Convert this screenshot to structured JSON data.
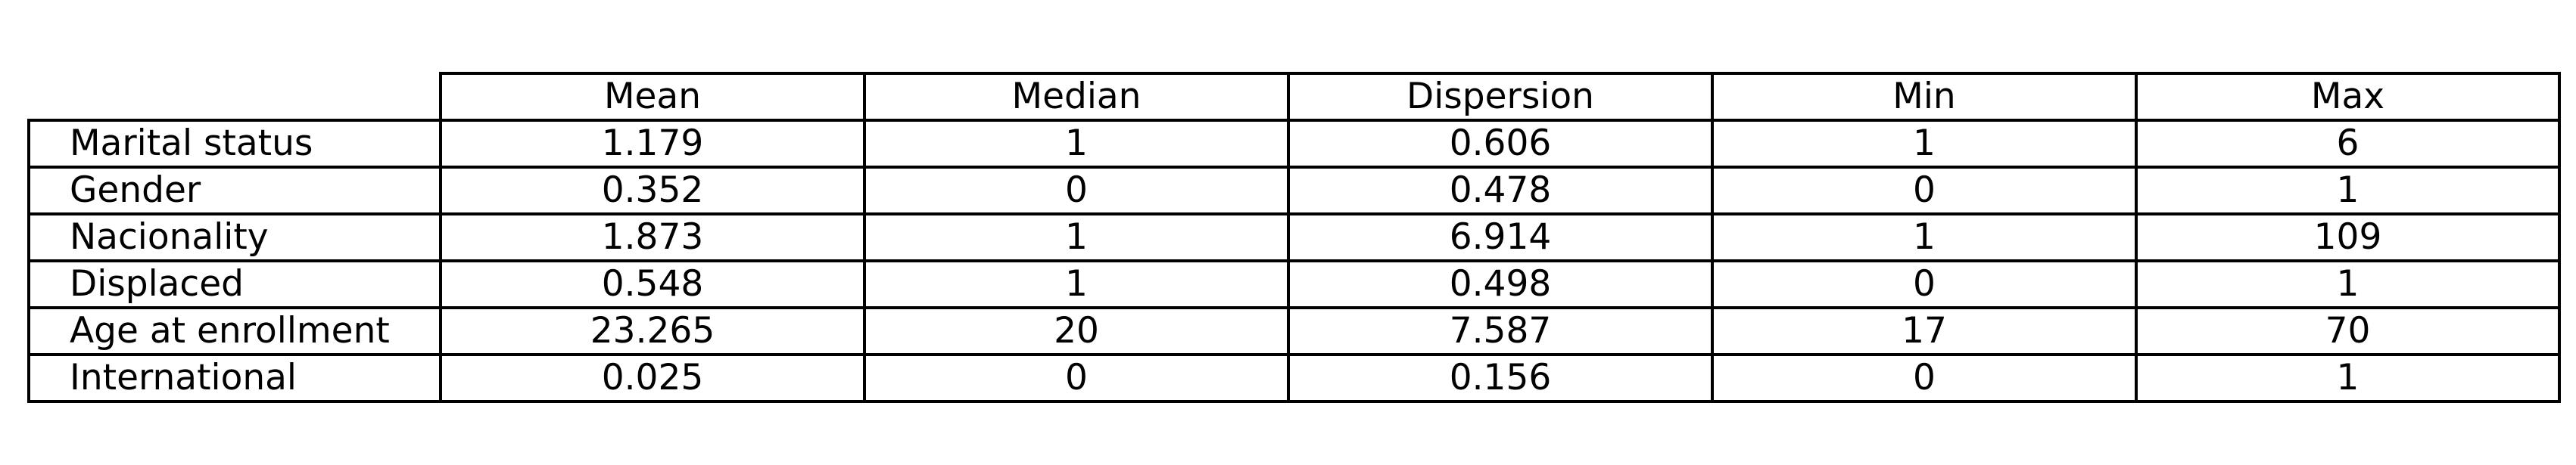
{
  "chart_data": {
    "type": "table",
    "columns": [
      "",
      "Mean",
      "Median",
      "Dispersion",
      "Min",
      "Max"
    ],
    "rows": [
      [
        "Marital status",
        "1.179",
        "1",
        "0.606",
        "1",
        "6"
      ],
      [
        "Gender",
        "0.352",
        "0",
        "0.478",
        "0",
        "1"
      ],
      [
        "Nacionality",
        "1.873",
        "1",
        "6.914",
        "1",
        "109"
      ],
      [
        "Displaced",
        "0.548",
        "1",
        "0.498",
        "0",
        "1"
      ],
      [
        "Age at enrollment",
        "23.265",
        "20",
        "7.587",
        "17",
        "70"
      ],
      [
        "International",
        "0.025",
        "0",
        "0.156",
        "0",
        "1"
      ]
    ]
  }
}
